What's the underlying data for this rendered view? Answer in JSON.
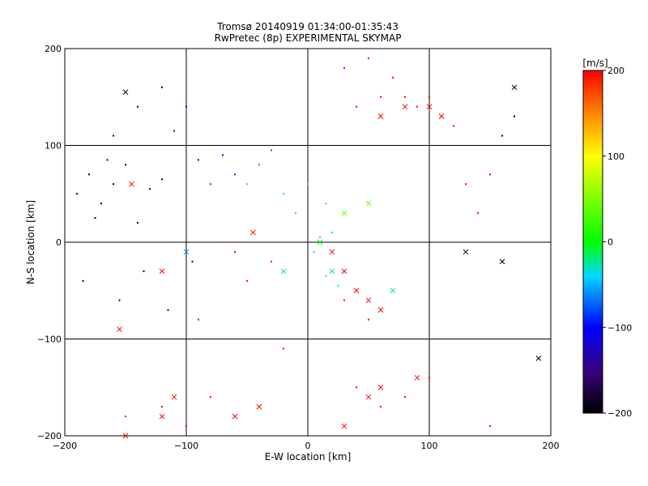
{
  "chart_data": {
    "type": "scatter",
    "title": "Tromsø 20140919 01:34:00-01:35:43",
    "subtitle": "RwPretec (8p) EXPERIMENTAL SKYMAP",
    "xlabel": "E-W location [km]",
    "ylabel": "N-S location [km]",
    "xlim": [
      -200,
      200
    ],
    "ylim": [
      -200,
      200
    ],
    "x_ticks": [
      -200,
      -100,
      0,
      100,
      200
    ],
    "y_ticks": [
      -200,
      -100,
      0,
      100,
      200
    ],
    "x_tick_labels": [
      "−200",
      "−100",
      "0",
      "100",
      "200"
    ],
    "y_tick_labels": [
      "−200",
      "−100",
      "0",
      "100",
      "200"
    ],
    "grid": true,
    "colorbar": {
      "label": "[m/s]",
      "range": [
        -200,
        200
      ],
      "ticks": [
        -200,
        -100,
        0,
        100,
        200
      ],
      "tick_labels": [
        "−200",
        "−100",
        "0",
        "100",
        "200"
      ]
    },
    "series": [
      {
        "marker": "dot",
        "points": [
          [
            -190,
            50,
            -200
          ],
          [
            -180,
            70,
            -200
          ],
          [
            -170,
            40,
            -200
          ],
          [
            -160,
            60,
            -200
          ],
          [
            -150,
            80,
            -200
          ],
          [
            -140,
            20,
            -200
          ],
          [
            -130,
            55,
            -200
          ],
          [
            -120,
            65,
            -200
          ],
          [
            -175,
            25,
            -200
          ],
          [
            -165,
            85,
            -200
          ],
          [
            -185,
            -40,
            -200
          ],
          [
            -155,
            -60,
            -180
          ],
          [
            -135,
            -30,
            -200
          ],
          [
            -115,
            -70,
            -200
          ],
          [
            -95,
            -20,
            -180
          ],
          [
            -60,
            70,
            -90
          ],
          [
            -80,
            60,
            -80
          ],
          [
            -40,
            80,
            -60
          ],
          [
            -70,
            90,
            -100
          ],
          [
            -50,
            60,
            -40
          ],
          [
            -30,
            95,
            -70
          ],
          [
            -90,
            85,
            -110
          ],
          [
            -20,
            50,
            -10
          ],
          [
            -10,
            30,
            10
          ],
          [
            0,
            60,
            40
          ],
          [
            15,
            40,
            30
          ],
          [
            20,
            10,
            -20
          ],
          [
            10,
            5,
            -30
          ],
          [
            5,
            -10,
            -40
          ],
          [
            15,
            -35,
            -40
          ],
          [
            25,
            -45,
            -30
          ],
          [
            40,
            140,
            200
          ],
          [
            60,
            150,
            200
          ],
          [
            80,
            150,
            200
          ],
          [
            100,
            150,
            200
          ],
          [
            110,
            130,
            200
          ],
          [
            120,
            120,
            200
          ],
          [
            30,
            180,
            200
          ],
          [
            50,
            190,
            200
          ],
          [
            70,
            170,
            200
          ],
          [
            90,
            140,
            200
          ],
          [
            60,
            -170,
            200
          ],
          [
            40,
            -150,
            200
          ],
          [
            80,
            -160,
            200
          ],
          [
            100,
            -140,
            200
          ],
          [
            -150,
            -180,
            200
          ],
          [
            -120,
            -170,
            200
          ],
          [
            -100,
            -190,
            200
          ],
          [
            -80,
            -160,
            200
          ],
          [
            130,
            60,
            200
          ],
          [
            140,
            30,
            200
          ],
          [
            150,
            70,
            200
          ],
          [
            -30,
            -20,
            200
          ],
          [
            -50,
            -40,
            200
          ],
          [
            -60,
            -10,
            200
          ],
          [
            30,
            -60,
            200
          ],
          [
            50,
            -80,
            200
          ],
          [
            -140,
            140,
            -200
          ],
          [
            -120,
            160,
            -200
          ],
          [
            -160,
            110,
            -200
          ],
          [
            -100,
            140,
            -100
          ],
          [
            -110,
            115,
            -150
          ],
          [
            160,
            110,
            -200
          ],
          [
            170,
            130,
            -200
          ],
          [
            -90,
            -80,
            200
          ],
          [
            -20,
            -110,
            200
          ],
          [
            150,
            -190,
            200
          ]
        ]
      },
      {
        "marker": "cross",
        "points": [
          [
            -150,
            155,
            -200
          ],
          [
            -145,
            60,
            200
          ],
          [
            -155,
            -90,
            200
          ],
          [
            -150,
            -200,
            200
          ],
          [
            -120,
            -180,
            200
          ],
          [
            -110,
            -160,
            200
          ],
          [
            -60,
            -180,
            200
          ],
          [
            -40,
            -170,
            200
          ],
          [
            20,
            -10,
            200
          ],
          [
            30,
            -30,
            200
          ],
          [
            40,
            -50,
            200
          ],
          [
            50,
            -60,
            200
          ],
          [
            60,
            -70,
            200
          ],
          [
            30,
            -190,
            200
          ],
          [
            50,
            -160,
            200
          ],
          [
            60,
            -150,
            200
          ],
          [
            90,
            -140,
            200
          ],
          [
            60,
            130,
            200
          ],
          [
            80,
            140,
            200
          ],
          [
            100,
            140,
            200
          ],
          [
            110,
            130,
            200
          ],
          [
            130,
            -10,
            -200
          ],
          [
            160,
            -20,
            -200
          ],
          [
            170,
            160,
            -200
          ],
          [
            190,
            -120,
            -200
          ],
          [
            -120,
            -30,
            200
          ],
          [
            -100,
            -10,
            -60
          ],
          [
            -45,
            10,
            200
          ],
          [
            -20,
            -30,
            -20
          ],
          [
            20,
            -30,
            -30
          ],
          [
            10,
            0,
            0
          ],
          [
            30,
            30,
            40
          ],
          [
            50,
            40,
            40
          ],
          [
            70,
            -50,
            -20
          ]
        ]
      }
    ]
  }
}
